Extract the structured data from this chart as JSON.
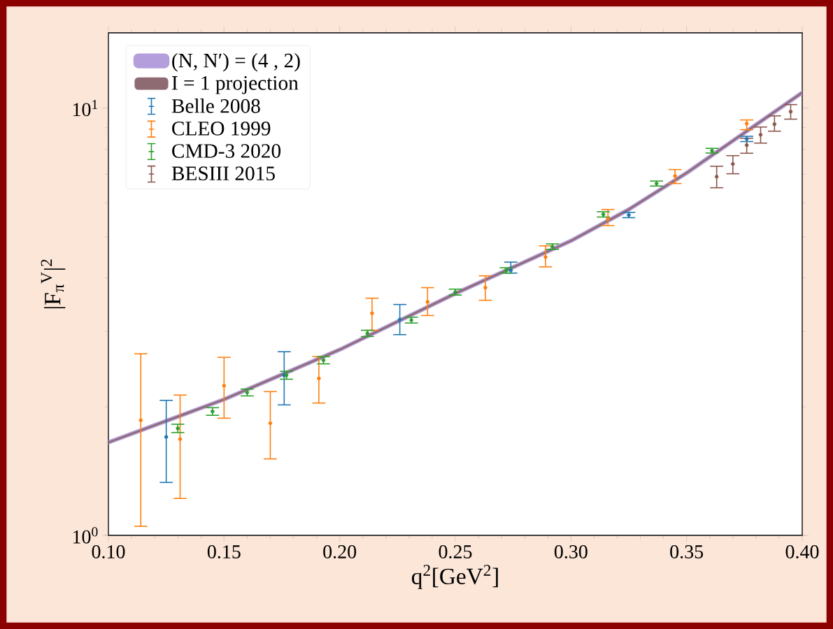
{
  "chart_data": {
    "type": "scatter",
    "xlabel": "q$^{2}$[GeV$^{2}$]",
    "ylabel": "|F$_{π}$$^{V}$|$^{2}$",
    "log": "y",
    "xlim": [
      0.1,
      0.4
    ],
    "ylim": [
      1,
      15
    ],
    "xticks": [
      {
        "value": 0.1,
        "label": "0.10"
      },
      {
        "value": 0.15,
        "label": "0.15"
      },
      {
        "value": 0.2,
        "label": "0.20"
      },
      {
        "value": 0.25,
        "label": "0.25"
      },
      {
        "value": 0.3,
        "label": "0.30"
      },
      {
        "value": 0.35,
        "label": "0.35"
      },
      {
        "value": 0.4,
        "label": "0.40"
      }
    ],
    "yticks": [
      {
        "value": 1,
        "label": "10$^{0}$"
      },
      {
        "value": 10,
        "label": "10$^{1}$"
      }
    ],
    "grid": false,
    "legend": "top left",
    "series": [
      {
        "name": "(N, N′) = (4 , 2)",
        "type": "line",
        "color": "#b49fdc",
        "x": [
          0.1,
          0.15,
          0.2,
          0.25,
          0.3,
          0.325,
          0.35,
          0.4
        ],
        "values": [
          1.65,
          2.08,
          2.72,
          3.68,
          4.89,
          5.79,
          7.05,
          10.87
        ]
      },
      {
        "name": "I = 1 projection",
        "type": "line",
        "color": "#8e6a72",
        "x": [
          0.1,
          0.15,
          0.2,
          0.25,
          0.3,
          0.325,
          0.35,
          0.4
        ],
        "values": [
          1.65,
          2.08,
          2.72,
          3.68,
          4.89,
          5.79,
          7.05,
          10.87
        ]
      },
      {
        "name": "Belle 2008",
        "color": "#1f77b4",
        "x": [
          0.125,
          0.176,
          0.226,
          0.274,
          0.325,
          0.376
        ],
        "values": [
          1.7,
          2.37,
          3.2,
          4.17,
          5.62,
          8.47
        ],
        "errors": [
          [
            1.33,
            2.07
          ],
          [
            2.02,
            2.69
          ],
          [
            2.95,
            3.47
          ],
          [
            4.11,
            4.36
          ],
          0.08,
          0.12
        ]
      },
      {
        "name": "CLEO 1999",
        "color": "#ff7f0e",
        "x": [
          0.114,
          0.131,
          0.15,
          0.17,
          0.191,
          0.214,
          0.238,
          0.263,
          0.289,
          0.316,
          0.345,
          0.376
        ],
        "values": [
          1.86,
          1.68,
          2.24,
          1.83,
          2.33,
          3.31,
          3.52,
          3.8,
          4.48,
          5.51,
          6.94,
          9.2
        ],
        "errors": [
          [
            1.05,
            2.66
          ],
          [
            1.22,
            2.13
          ],
          [
            1.88,
            2.61
          ],
          [
            1.51,
            2.17
          ],
          [
            2.04,
            2.62
          ],
          [
            3.02,
            3.59
          ],
          [
            3.27,
            3.8
          ],
          [
            3.55,
            4.05
          ],
          [
            4.25,
            4.76
          ],
          [
            5.31,
            5.79
          ],
          [
            6.66,
            7.18
          ],
          [
            8.9,
            9.38
          ]
        ]
      },
      {
        "name": "CMD-3 2020",
        "color": "#2ca02c",
        "x": [
          0.13,
          0.145,
          0.16,
          0.177,
          0.193,
          0.212,
          0.231,
          0.25,
          0.272,
          0.292,
          0.314,
          0.337,
          0.361
        ],
        "values": [
          1.78,
          1.95,
          2.16,
          2.37,
          2.57,
          2.97,
          3.19,
          3.71,
          4.17,
          4.74,
          5.64,
          6.66,
          7.95
        ],
        "errors": [
          0.04,
          0.04,
          0.04,
          0.05,
          0.05,
          0.05,
          0.05,
          0.06,
          0.06,
          0.07,
          0.08,
          0.09,
          0.1
        ]
      },
      {
        "name": "BESIII 2015",
        "color": "#8c564b",
        "x": [
          0.363,
          0.37,
          0.376,
          0.382,
          0.388,
          0.395
        ],
        "values": [
          6.91,
          7.4,
          8.19,
          8.66,
          9.17,
          9.81
        ],
        "errors": [
          [
            6.51,
            7.31
          ],
          [
            7.02,
            7.74
          ],
          [
            7.84,
            8.5
          ],
          [
            8.28,
            9.03
          ],
          [
            8.83,
            9.59
          ],
          [
            9.42,
            10.19
          ]
        ]
      }
    ]
  }
}
